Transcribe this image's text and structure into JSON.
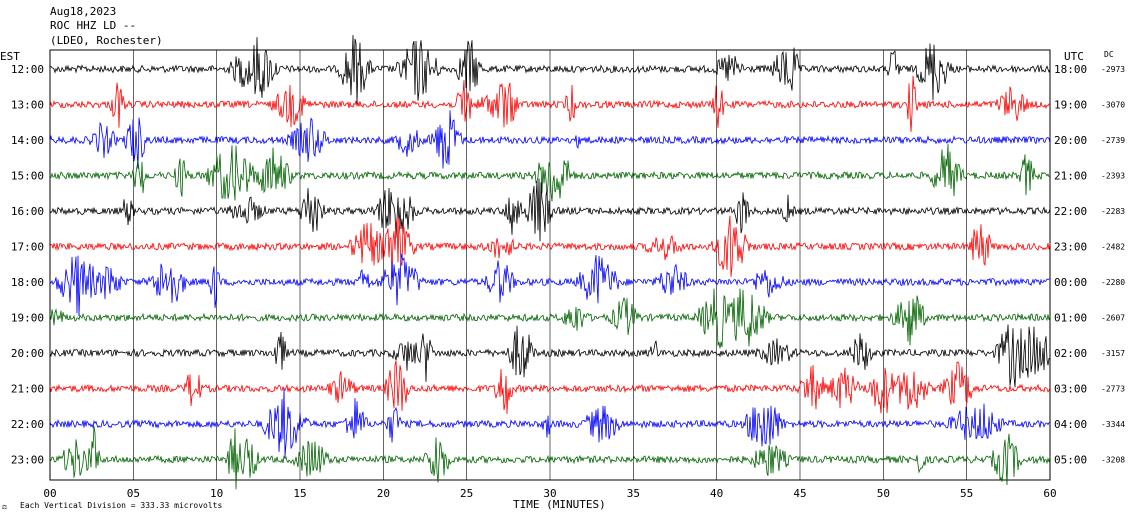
{
  "header": {
    "date": "Aug18,2023",
    "station": "ROC HHZ LD --",
    "location": "(LDEO, Rochester)"
  },
  "left_axis_label": "EST",
  "right_axis_label": "UTC",
  "dc_label": "DC",
  "footer": {
    "scale_note": "Each Vertical Division =  333.33 microvolts"
  },
  "chart_data": {
    "type": "line",
    "xlabel": "TIME (MINUTES)",
    "xlim": [
      0,
      60
    ],
    "x_ticks": [
      "00",
      "05",
      "10",
      "15",
      "20",
      "25",
      "30",
      "35",
      "40",
      "45",
      "50",
      "55",
      "60"
    ],
    "x_tick_values": [
      0,
      5,
      10,
      15,
      20,
      25,
      30,
      35,
      40,
      45,
      50,
      55,
      60
    ],
    "trace_colors": [
      "#000000",
      "#ff0000",
      "#0000ff",
      "#006400"
    ],
    "rows": [
      {
        "est": "12:00",
        "utc": "18:00",
        "dc": "-2973"
      },
      {
        "est": "13:00",
        "utc": "19:00",
        "dc": "-3070"
      },
      {
        "est": "14:00",
        "utc": "20:00",
        "dc": "-2739"
      },
      {
        "est": "15:00",
        "utc": "21:00",
        "dc": "-2393"
      },
      {
        "est": "16:00",
        "utc": "22:00",
        "dc": "-2283"
      },
      {
        "est": "17:00",
        "utc": "23:00",
        "dc": "-2482"
      },
      {
        "est": "18:00",
        "utc": "00:00",
        "dc": "-2280"
      },
      {
        "est": "19:00",
        "utc": "01:00",
        "dc": "-2607"
      },
      {
        "est": "20:00",
        "utc": "02:00",
        "dc": "-3157"
      },
      {
        "est": "21:00",
        "utc": "03:00",
        "dc": "-2773"
      },
      {
        "est": "22:00",
        "utc": "04:00",
        "dc": "-3344"
      },
      {
        "est": "23:00",
        "utc": "05:00",
        "dc": "-3208"
      }
    ]
  }
}
